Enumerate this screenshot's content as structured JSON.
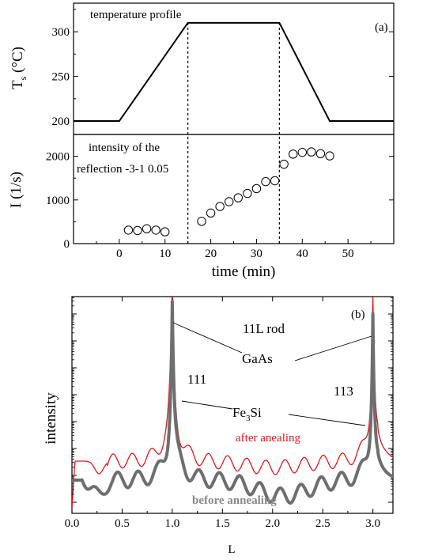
{
  "chart_data": [
    {
      "panel": "(a)",
      "type": "line",
      "title": "temperature profile",
      "ylabel": "T_s (°C)",
      "ylim": [
        185,
        332
      ],
      "yticks": [
        200,
        250,
        300
      ],
      "xlim": [
        -10,
        60
      ],
      "series": [
        {
          "x": [
            -10,
            0,
            15,
            35,
            46,
            60
          ],
          "y": [
            200,
            200,
            310,
            310,
            200,
            200
          ]
        }
      ]
    },
    {
      "panel": "",
      "type": "scatter",
      "annotation": [
        "intensity of the",
        "reflection -3-1 0.05"
      ],
      "xlabel": "time (min)",
      "ylabel": "I (1/s)",
      "xlim": [
        -10,
        60
      ],
      "ylim": [
        0,
        2500
      ],
      "xticks": [
        0,
        10,
        20,
        30,
        40,
        50
      ],
      "yticks": [
        0,
        1000,
        2000
      ],
      "markers": [
        15,
        35
      ],
      "series": [
        {
          "x": [
            2,
            4,
            6,
            8,
            10,
            18,
            20,
            22,
            24,
            26,
            28,
            30,
            32,
            34,
            36,
            38,
            40,
            42,
            44,
            46
          ],
          "y": [
            310,
            300,
            340,
            310,
            270,
            510,
            700,
            850,
            960,
            1050,
            1150,
            1260,
            1420,
            1440,
            1820,
            2050,
            2090,
            2100,
            2060,
            2010
          ]
        }
      ]
    },
    {
      "panel": "(b)",
      "type": "line",
      "xlabel": "L",
      "ylabel": "intensity",
      "yscale": "log",
      "xlim": [
        0.0,
        3.2
      ],
      "xticks": [
        0.0,
        0.5,
        1.0,
        1.5,
        2.0,
        2.5,
        3.0
      ],
      "annotations": {
        "rod": "11L rod",
        "substrate": "GaAs",
        "peak_left": "111",
        "peak_right": "113",
        "film": "Fe",
        "film_sub": "3",
        "film_tail": "Si"
      },
      "series": [
        {
          "name": "after anealing",
          "color": "#e8141c",
          "label_color": "#e8141c"
        },
        {
          "name": "before annealing",
          "color": "#6e6e6e",
          "label_color": "#8a8a8a"
        }
      ]
    }
  ]
}
